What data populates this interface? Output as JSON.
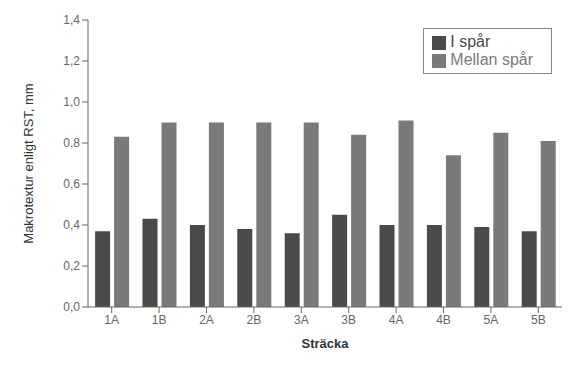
{
  "chart_data": {
    "type": "bar",
    "xlabel": "Sträcka",
    "ylabel": "Makrotextur enligt RST, mm",
    "categories": [
      "1A",
      "1B",
      "2A",
      "2B",
      "3A",
      "3B",
      "4A",
      "4B",
      "5A",
      "5B"
    ],
    "series": [
      {
        "name": "I spår",
        "color": "#4a4a4a",
        "values": [
          0.37,
          0.43,
          0.4,
          0.38,
          0.36,
          0.45,
          0.4,
          0.4,
          0.39,
          0.37
        ]
      },
      {
        "name": "Mellan spår",
        "color": "#7a7a7a",
        "values": [
          0.83,
          0.9,
          0.9,
          0.9,
          0.9,
          0.84,
          0.91,
          0.74,
          0.85,
          0.81
        ]
      }
    ],
    "ylim": [
      0,
      1.4
    ],
    "yticks": [
      {
        "value": 0.0,
        "label": "0,0"
      },
      {
        "value": 0.2,
        "label": "0,2"
      },
      {
        "value": 0.4,
        "label": "0,4"
      },
      {
        "value": 0.6,
        "label": "0,6"
      },
      {
        "value": 0.8,
        "label": "0,8"
      },
      {
        "value": 1.0,
        "label": "1,0"
      },
      {
        "value": 1.2,
        "label": "1,2"
      },
      {
        "value": 1.4,
        "label": "1,4"
      }
    ],
    "grid": false,
    "legend": "upper right"
  }
}
